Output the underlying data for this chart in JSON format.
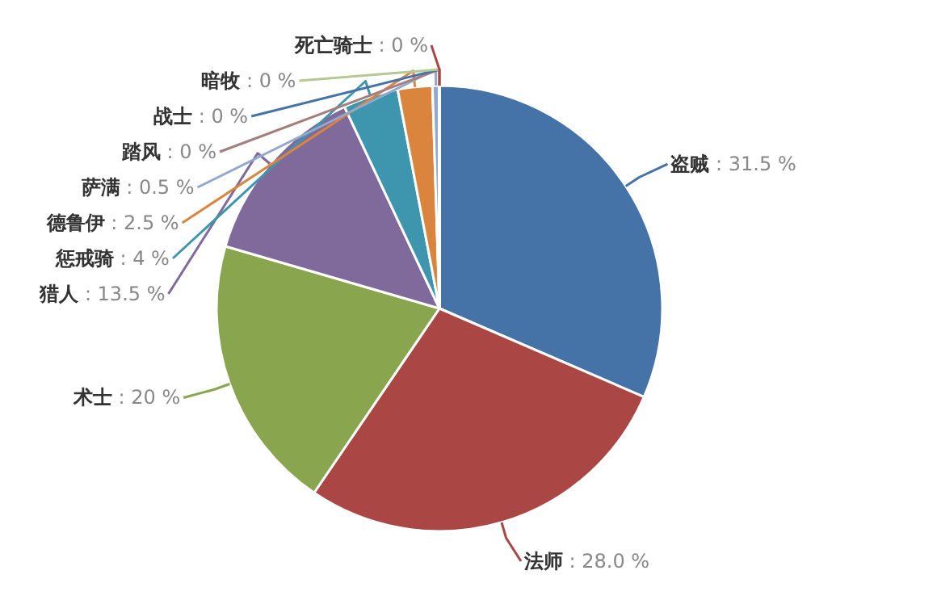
{
  "chart_data": {
    "type": "pie",
    "categories": [
      "盗贼",
      "法师",
      "术士",
      "猎人",
      "惩戒骑",
      "德鲁伊",
      "萨满",
      "踏风",
      "战士",
      "暗牧",
      "死亡骑士"
    ],
    "values": [
      31.5,
      28.0,
      20,
      13.5,
      4,
      2.5,
      0.5,
      0,
      0,
      0,
      0
    ],
    "value_labels": [
      ": 31.5 %",
      ": 28.0 %",
      ": 20 %",
      ": 13.5 %",
      ": 4 %",
      ": 2.5 %",
      ": 0.5 %",
      ": 0 %",
      ": 0 %",
      ": 0 %",
      ": 0 %"
    ],
    "colors": [
      "#4572a7",
      "#aa4643",
      "#89a54e",
      "#80699b",
      "#3d96ae",
      "#db843d",
      "#92a8cd",
      "#a47d7c",
      "#4572a7",
      "#b5ca92",
      "#aa4643"
    ]
  }
}
